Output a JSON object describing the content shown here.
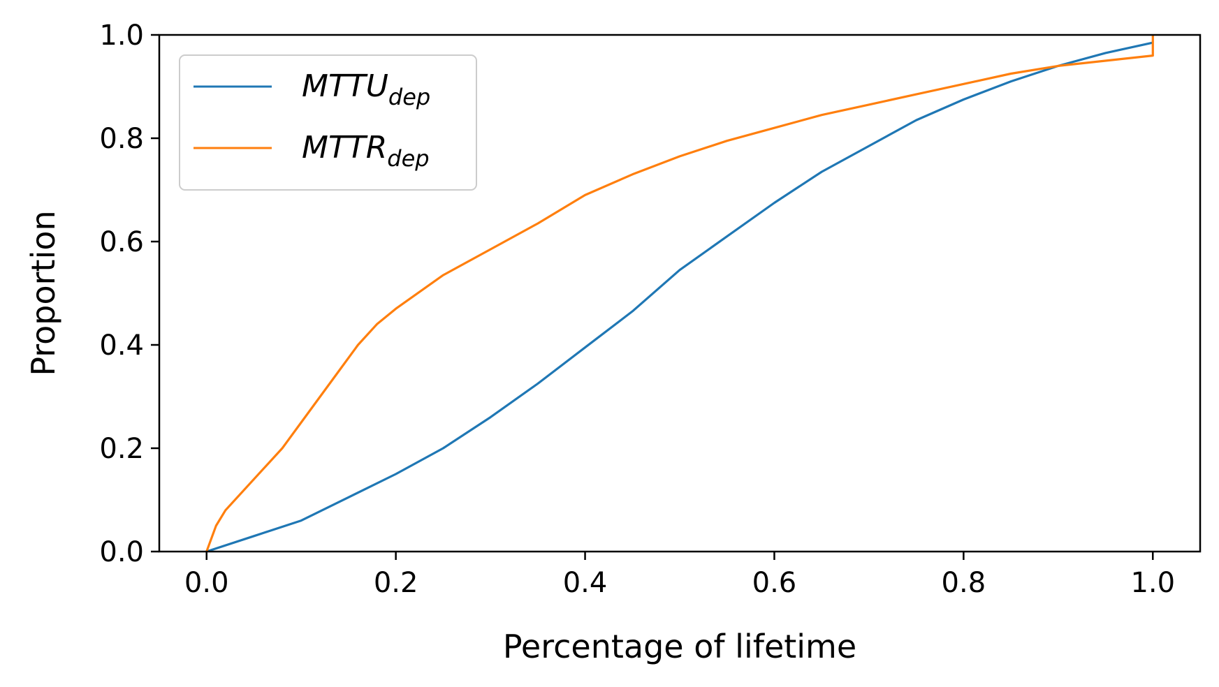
{
  "chart_data": {
    "type": "line",
    "title": "",
    "xlabel": "Percentage of lifetime",
    "ylabel": "Proportion",
    "xlim": [
      -0.05,
      1.05
    ],
    "ylim": [
      0.0,
      1.0
    ],
    "xticks": [
      "0.0",
      "0.2",
      "0.4",
      "0.6",
      "0.8",
      "1.0"
    ],
    "yticks": [
      "0.0",
      "0.2",
      "0.4",
      "0.6",
      "0.8",
      "1.0"
    ],
    "grid": false,
    "legend_position": "upper-left",
    "series": [
      {
        "name": "MTTU",
        "name_subscript": "dep",
        "color": "#1f77b4",
        "points": [
          [
            0.0,
            0.0
          ],
          [
            0.05,
            0.03
          ],
          [
            0.1,
            0.06
          ],
          [
            0.15,
            0.105
          ],
          [
            0.2,
            0.15
          ],
          [
            0.25,
            0.2
          ],
          [
            0.3,
            0.26
          ],
          [
            0.35,
            0.325
          ],
          [
            0.4,
            0.395
          ],
          [
            0.45,
            0.465
          ],
          [
            0.5,
            0.545
          ],
          [
            0.55,
            0.61
          ],
          [
            0.6,
            0.675
          ],
          [
            0.65,
            0.735
          ],
          [
            0.7,
            0.785
          ],
          [
            0.75,
            0.835
          ],
          [
            0.8,
            0.875
          ],
          [
            0.85,
            0.91
          ],
          [
            0.9,
            0.94
          ],
          [
            0.95,
            0.965
          ],
          [
            1.0,
            0.985
          ]
        ]
      },
      {
        "name": "MTTR",
        "name_subscript": "dep",
        "color": "#ff7f0e",
        "points": [
          [
            0.0,
            0.0
          ],
          [
            0.01,
            0.05
          ],
          [
            0.02,
            0.08
          ],
          [
            0.04,
            0.12
          ],
          [
            0.06,
            0.16
          ],
          [
            0.08,
            0.2
          ],
          [
            0.1,
            0.25
          ],
          [
            0.12,
            0.3
          ],
          [
            0.14,
            0.35
          ],
          [
            0.16,
            0.4
          ],
          [
            0.18,
            0.44
          ],
          [
            0.2,
            0.47
          ],
          [
            0.25,
            0.535
          ],
          [
            0.3,
            0.585
          ],
          [
            0.35,
            0.635
          ],
          [
            0.4,
            0.69
          ],
          [
            0.45,
            0.73
          ],
          [
            0.5,
            0.765
          ],
          [
            0.55,
            0.795
          ],
          [
            0.6,
            0.82
          ],
          [
            0.65,
            0.845
          ],
          [
            0.7,
            0.865
          ],
          [
            0.75,
            0.885
          ],
          [
            0.8,
            0.905
          ],
          [
            0.85,
            0.925
          ],
          [
            0.9,
            0.94
          ],
          [
            0.95,
            0.95
          ],
          [
            1.0,
            0.96
          ],
          [
            1.0,
            1.0
          ]
        ]
      }
    ]
  }
}
